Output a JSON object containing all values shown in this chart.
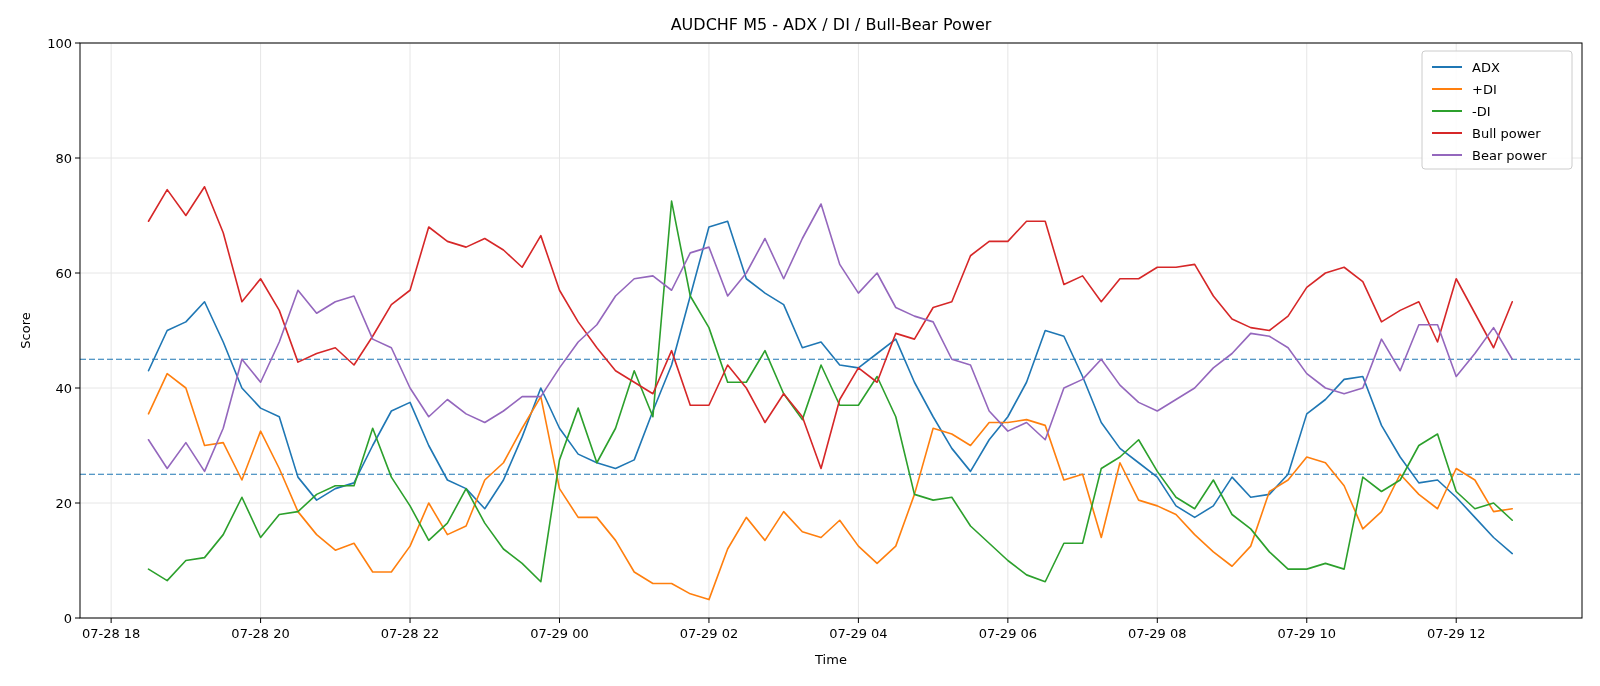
{
  "chart_data": {
    "type": "line",
    "title": "AUDCHF M5 - ADX / DI / Bull-Bear Power",
    "xlabel": "Time",
    "ylabel": "Score",
    "x": [
      "--07-28T18:30",
      "--07-28T18:45",
      "--07-28T19:00",
      "--07-28T19:15",
      "--07-28T19:30",
      "--07-28T19:45",
      "--07-28T20:00",
      "--07-28T20:15",
      "--07-28T20:30",
      "--07-28T20:45",
      "--07-28T21:00",
      "--07-28T21:15",
      "--07-28T21:30",
      "--07-28T21:45",
      "--07-28T22:00",
      "--07-28T22:15",
      "--07-28T22:30",
      "--07-28T22:45",
      "--07-28T23:00",
      "--07-28T23:15",
      "--07-28T23:30",
      "--07-28T23:45",
      "--07-29T00:00",
      "--07-29T00:15",
      "--07-29T00:30",
      "--07-29T00:45",
      "--07-29T01:00",
      "--07-29T01:15",
      "--07-29T01:30",
      "--07-29T01:45",
      "--07-29T02:00",
      "--07-29T02:15",
      "--07-29T02:30",
      "--07-29T02:45",
      "--07-29T03:00",
      "--07-29T03:15",
      "--07-29T03:30",
      "--07-29T03:45",
      "--07-29T04:00",
      "--07-29T04:15",
      "--07-29T04:30",
      "--07-29T04:45",
      "--07-29T05:00",
      "--07-29T05:15",
      "--07-29T05:30",
      "--07-29T05:45",
      "--07-29T06:00",
      "--07-29T06:15",
      "--07-29T06:30",
      "--07-29T06:45",
      "--07-29T07:00",
      "--07-29T07:15",
      "--07-29T07:30",
      "--07-29T07:45",
      "--07-29T08:00",
      "--07-29T08:15",
      "--07-29T08:30",
      "--07-29T08:45",
      "--07-29T09:00",
      "--07-29T09:15",
      "--07-29T09:30",
      "--07-29T09:45",
      "--07-29T10:00",
      "--07-29T10:15",
      "--07-29T10:30",
      "--07-29T10:45",
      "--07-29T11:00",
      "--07-29T11:15",
      "--07-29T11:30",
      "--07-29T11:45",
      "--07-29T12:00",
      "--07-29T12:15",
      "--07-29T12:30",
      "--07-29T12:45"
    ],
    "series": [
      {
        "name": "ADX",
        "color": "#1f77b4",
        "values": [
          43,
          50,
          51.5,
          55,
          48,
          40,
          36.5,
          35,
          24.5,
          20.5,
          22.5,
          23.5,
          30,
          36,
          37.5,
          30,
          24,
          22.5,
          19,
          24,
          31.5,
          40,
          33,
          28.5,
          27,
          26,
          27.5,
          36,
          44,
          56,
          68,
          69,
          59,
          56.5,
          54.5,
          47,
          48,
          44,
          43.5,
          46,
          48.5,
          41,
          35,
          29.5,
          25.5,
          31,
          35,
          41,
          50,
          49,
          42,
          34,
          29.5,
          27,
          24.5,
          19.5,
          17.5,
          19.5,
          24.5,
          21,
          21.5,
          25,
          35.5,
          38,
          41.5,
          42,
          33.5,
          28,
          23.5,
          24,
          21,
          17.5,
          14,
          11.2
        ]
      },
      {
        "name": "+DI",
        "color": "#ff7f0e",
        "values": [
          35.5,
          42.5,
          40,
          30,
          30.5,
          24,
          32.5,
          26,
          18.5,
          14.5,
          11.8,
          13,
          8,
          8,
          12.5,
          20,
          14.5,
          16,
          24,
          27,
          33,
          38.5,
          22.5,
          17.5,
          17.5,
          13.5,
          8,
          6,
          6,
          4.2,
          3.2,
          12,
          17.5,
          13.5,
          18.5,
          15,
          14,
          17,
          12.5,
          9.5,
          12.5,
          21.5,
          33,
          32,
          30,
          34,
          34,
          34.5,
          33.5,
          24,
          25,
          14,
          27,
          20.5,
          19.5,
          18,
          14.5,
          11.5,
          9,
          12.5,
          22,
          24,
          28,
          27,
          23,
          15.5,
          18.5,
          25,
          21.5,
          19,
          26,
          24,
          18.5,
          19
        ]
      },
      {
        "name": "-DI",
        "color": "#2ca02c",
        "values": [
          8.5,
          6.5,
          10,
          10.5,
          14.5,
          21,
          14,
          18,
          18.5,
          21.5,
          23,
          23,
          33,
          24.5,
          19.5,
          13.5,
          16.5,
          22.5,
          16.5,
          12,
          9.5,
          6.3,
          27.5,
          36.5,
          27,
          33,
          43,
          35,
          72.5,
          56,
          50.5,
          41,
          41,
          46.5,
          39,
          34.5,
          44,
          37,
          37,
          42,
          35,
          21.5,
          20.5,
          21,
          16,
          13,
          10,
          7.5,
          6.3,
          13,
          13,
          26,
          28,
          31,
          25.5,
          21,
          19,
          24,
          18,
          15.5,
          11.5,
          8.5,
          8.5,
          9.5,
          8.5,
          24.5,
          22,
          24,
          30,
          32,
          22,
          19,
          20,
          17
        ]
      },
      {
        "name": "Bull power",
        "color": "#d62728",
        "values": [
          69,
          74.5,
          70,
          75,
          67,
          55,
          59,
          53.5,
          44.5,
          46,
          47,
          44,
          49,
          54.5,
          57,
          68,
          65.5,
          64.5,
          66,
          64,
          61,
          66.5,
          57,
          51.5,
          47,
          43,
          41,
          39,
          46.5,
          37,
          37,
          44,
          40,
          34,
          39,
          35,
          26,
          38,
          43.5,
          41,
          49.5,
          48.5,
          54,
          55,
          63,
          65.5,
          65.5,
          69,
          69,
          58,
          59.5,
          55,
          59,
          59,
          61,
          61,
          61.5,
          56,
          52,
          50.5,
          50,
          52.5,
          57.5,
          60,
          61,
          58.5,
          51.5,
          53.5,
          55,
          48,
          59,
          53,
          47,
          55
        ]
      },
      {
        "name": "Bear power",
        "color": "#9467bd",
        "values": [
          31,
          26,
          30.5,
          25.5,
          33,
          45,
          41,
          48,
          57,
          53,
          55,
          56,
          48.5,
          47,
          40,
          35,
          38,
          35.5,
          34,
          36,
          38.5,
          38.5,
          43.5,
          48,
          51,
          56,
          59,
          59.5,
          57,
          63.5,
          64.5,
          56,
          60,
          66,
          59,
          66,
          72,
          61.5,
          56.5,
          60,
          54,
          52.5,
          51.5,
          45,
          44,
          36,
          32.5,
          34,
          31,
          40,
          41.5,
          45,
          40.5,
          37.5,
          36,
          38,
          40,
          43.5,
          46,
          49.5,
          49,
          47,
          42.5,
          40,
          39,
          40,
          48.5,
          43,
          51,
          51,
          42,
          46,
          50.5,
          45
        ]
      }
    ],
    "xlim": [
      "--07-28T17:35",
      "--07-29T13:41"
    ],
    "xticks": [
      {
        "value": "--07-28T18:00",
        "label": "07-28 18"
      },
      {
        "value": "--07-28T20:00",
        "label": "07-28 20"
      },
      {
        "value": "--07-28T22:00",
        "label": "07-28 22"
      },
      {
        "value": "--07-29T00:00",
        "label": "07-29 00"
      },
      {
        "value": "--07-29T02:00",
        "label": "07-29 02"
      },
      {
        "value": "--07-29T04:00",
        "label": "07-29 04"
      },
      {
        "value": "--07-29T06:00",
        "label": "07-29 06"
      },
      {
        "value": "--07-29T08:00",
        "label": "07-29 08"
      },
      {
        "value": "--07-29T10:00",
        "label": "07-29 10"
      },
      {
        "value": "--07-29T12:00",
        "label": "07-29 12"
      }
    ],
    "ylim": [
      0,
      100
    ],
    "yticks": [
      0,
      20,
      40,
      60,
      80,
      100
    ],
    "ref_lines": [
      {
        "axis": "y",
        "value": 45,
        "color": "#1f77b4",
        "line_style": "dashed"
      },
      {
        "axis": "y",
        "value": 25,
        "color": "#1f77b4",
        "line_style": "dashed"
      }
    ],
    "grid": true,
    "legend": "top right",
    "marker": "none",
    "line_style": "solid"
  }
}
